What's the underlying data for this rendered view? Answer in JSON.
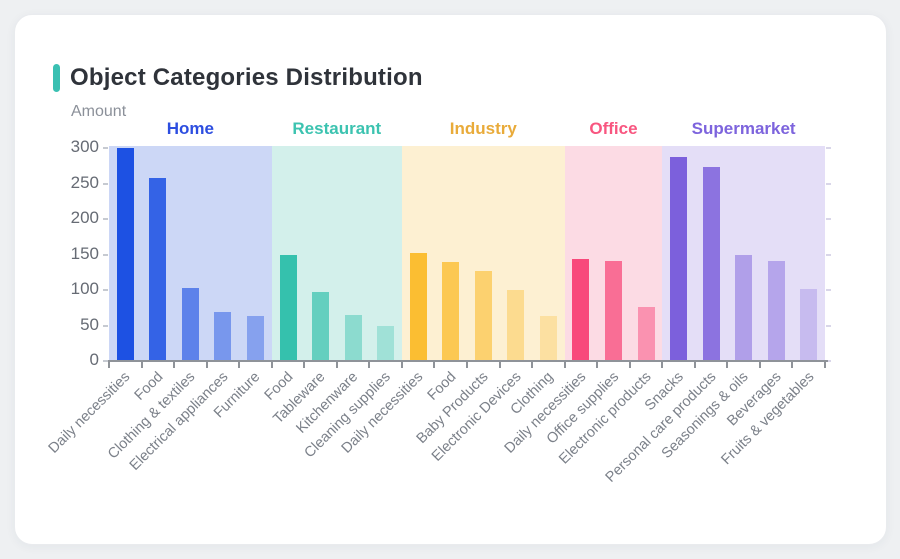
{
  "card": {
    "title": "Object Categories Distribution",
    "accent_color": "#3ac0b2"
  },
  "chart_data": {
    "type": "bar",
    "title": "Object Categories Distribution",
    "xlabel": "",
    "ylabel": "Amount",
    "ylim": [
      0,
      300
    ],
    "yticks": [
      0,
      50,
      100,
      150,
      200,
      250,
      300
    ],
    "grid": false,
    "legend_position": "top-inline-over-bands",
    "groups": [
      {
        "name": "Home",
        "label_color": "#2d4ee0",
        "bar_color": "#1d51e3",
        "band_color": "#ccd7f6",
        "bar_opacities": [
          1,
          0.87,
          0.64,
          0.48,
          0.4
        ],
        "categories": [
          "Daily necessities",
          "Food",
          "Clothing & textiles",
          "Electrical appliances",
          "Furniture"
        ],
        "values": [
          300,
          258,
          103,
          69,
          64
        ]
      },
      {
        "name": "Restaurant",
        "label_color": "#3cc3b0",
        "bar_color": "#35c1ad",
        "band_color": "#d3f0eb",
        "bar_opacities": [
          1,
          0.7,
          0.45,
          0.32
        ],
        "categories": [
          "Food",
          "Tableware",
          "Kitchenware",
          "Cleaning supplies"
        ],
        "values": [
          150,
          97,
          65,
          50
        ]
      },
      {
        "name": "Industry",
        "label_color": "#e9ab3a",
        "bar_color": "#fbbe32",
        "band_color": "#fdf0d2",
        "bar_opacities": [
          1,
          0.8,
          0.62,
          0.42,
          0.3
        ],
        "categories": [
          "Daily necessities",
          "Food",
          "Baby Products",
          "Electronic Devices",
          "Clothing"
        ],
        "values": [
          152,
          140,
          127,
          100,
          63
        ]
      },
      {
        "name": "Office",
        "label_color": "#f85680",
        "bar_color": "#f8497b",
        "band_color": "#fcdbe4",
        "bar_opacities": [
          1,
          0.75,
          0.5
        ],
        "categories": [
          "Daily necessities",
          "Office supplies",
          "Electronic products"
        ],
        "values": [
          144,
          141,
          76
        ]
      },
      {
        "name": "Supermarket",
        "label_color": "#7d64dd",
        "bar_color": "#7c60dc",
        "band_color": "#e4def7",
        "bar_opacities": [
          1,
          0.85,
          0.5,
          0.45,
          0.28
        ],
        "categories": [
          "Snacks",
          "Personal care products",
          "Seasonings & oils",
          "Beverages",
          "Fruits & vegetables"
        ],
        "values": [
          287,
          273,
          149,
          141,
          102
        ]
      }
    ]
  }
}
